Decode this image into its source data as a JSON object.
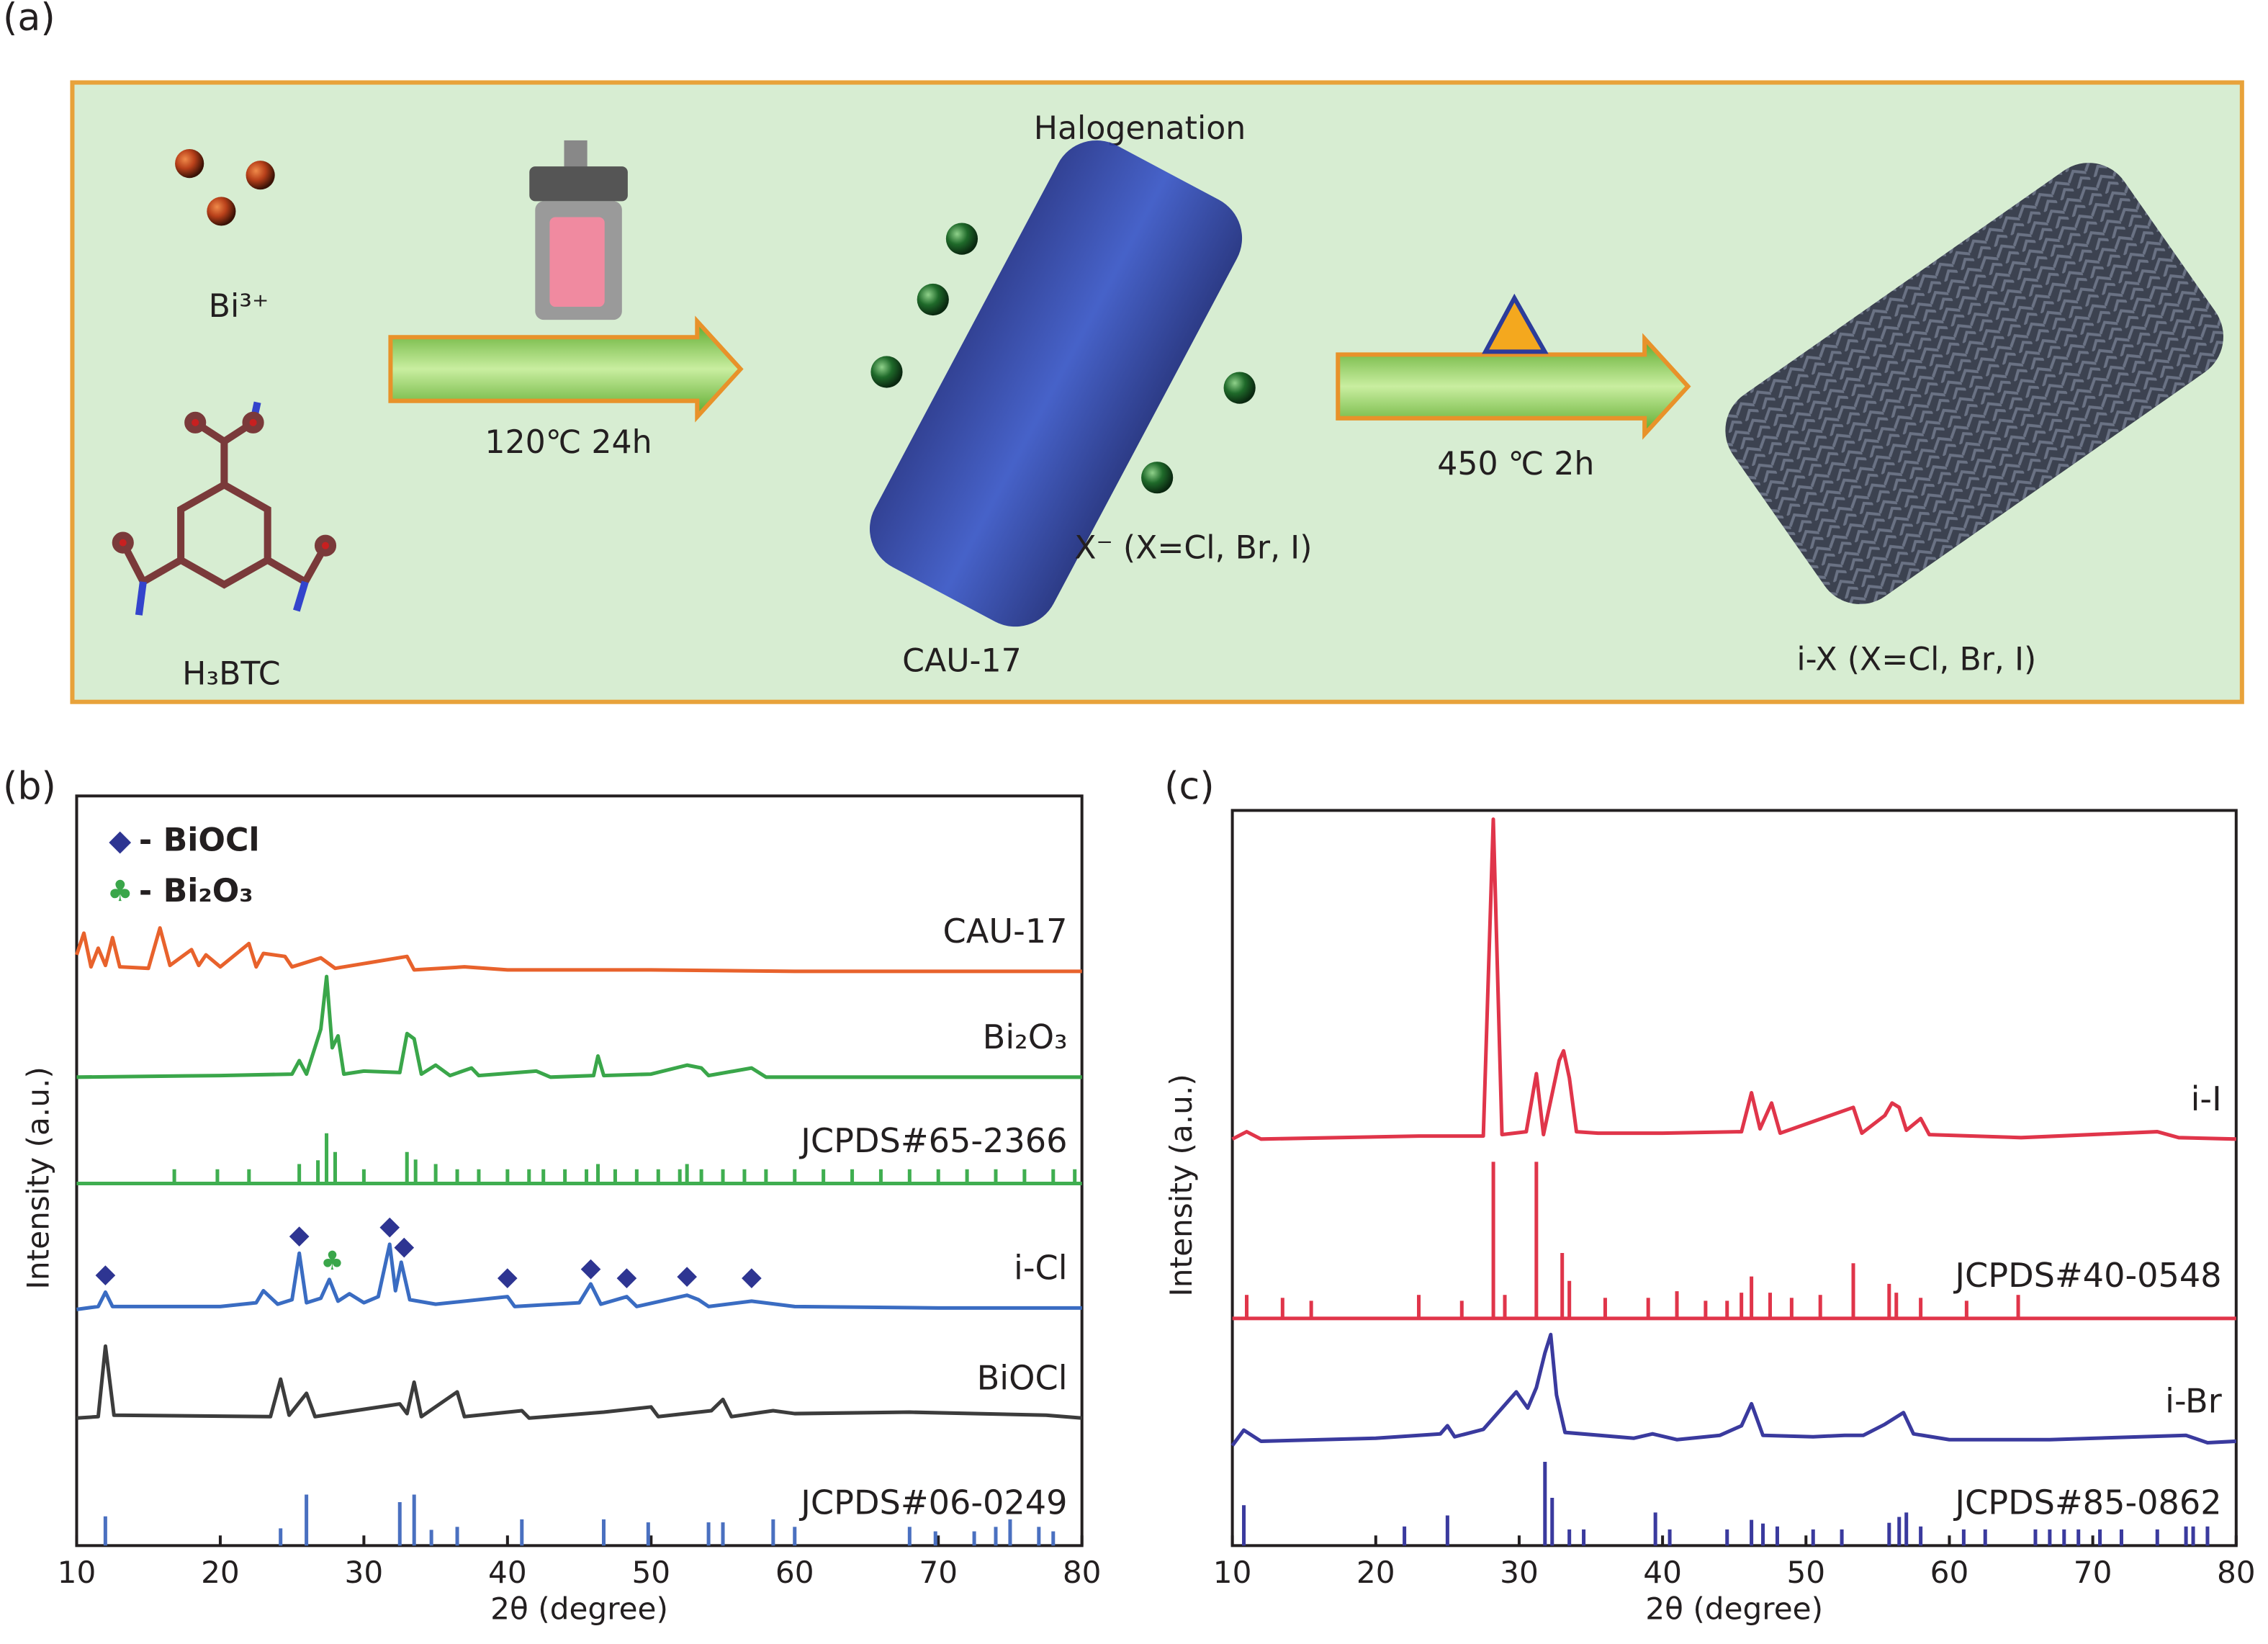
{
  "panel_a": {
    "label": "(a)",
    "halogenation": "Halogenation",
    "bi_ion": "Bi³⁺",
    "linker": "H₃BTC",
    "step1": "120℃ 24h",
    "cau": "CAU-17",
    "halide": "X⁻ (X=Cl, Br, I)",
    "step2": "450 ℃ 2h",
    "product": "i-X (X=Cl, Br, I)"
  },
  "chart_data": [
    {
      "type": "line",
      "panel_label": "(b)",
      "xlabel": "2θ (degree)",
      "ylabel": "Intensity (a.u.)",
      "xlim": [
        10,
        80
      ],
      "xticks": [
        10,
        20,
        30,
        40,
        50,
        60,
        70,
        80
      ],
      "ylim": [
        0,
        100
      ],
      "legend": [
        {
          "name": "- BiOCl",
          "symbol": "◆",
          "color": "#2e3592"
        },
        {
          "name": "- Bi₂O₃",
          "symbol": "♣",
          "color": "#3aa64a"
        }
      ],
      "phase_markers": [
        {
          "symbol": "◆",
          "color": "#2e3592",
          "x": [
            12,
            25.5,
            31.8,
            32.8,
            40,
            45.8,
            48.3,
            52.5,
            57
          ],
          "y": [
            36.1,
            41.3,
            42.5,
            39.8,
            35.7,
            36.9,
            35.7,
            35.9,
            35.7
          ]
        },
        {
          "symbol": "♣",
          "color": "#3aa64a",
          "x": [
            27.8
          ],
          "y": [
            37.8
          ]
        }
      ],
      "series": [
        {
          "name": "CAU-17",
          "style": "line",
          "color": "#e8622c",
          "x": [
            10,
            10.5,
            11,
            11.5,
            12,
            12.5,
            13,
            15,
            15.8,
            16.5,
            18,
            18.5,
            19,
            20,
            22,
            22.5,
            23,
            24.5,
            25,
            27,
            28,
            33,
            33.5,
            37,
            40,
            50,
            60,
            70,
            80
          ],
          "values": [
            78.8,
            81.7,
            77.2,
            79.7,
            77.4,
            81.1,
            77.2,
            77.0,
            82.4,
            77.4,
            79.5,
            77.4,
            78.8,
            77.2,
            80.3,
            77.2,
            79.0,
            78.6,
            77.2,
            78.4,
            77.0,
            78.6,
            76.8,
            77.2,
            76.8,
            76.8,
            76.6,
            76.6,
            76.6
          ]
        },
        {
          "name": "Bi₂O₃",
          "style": "line",
          "color": "#3aa64a",
          "x": [
            10,
            20,
            25,
            25.5,
            26,
            27,
            27.4,
            27.8,
            28.2,
            28.6,
            30,
            32.5,
            33,
            33.5,
            34,
            35,
            36,
            37.5,
            38,
            42,
            43,
            46,
            46.3,
            46.7,
            50,
            52.5,
            53.5,
            54,
            57,
            58,
            70,
            80
          ],
          "values": [
            62.5,
            62.7,
            62.9,
            64.7,
            62.9,
            68.9,
            75.9,
            66.4,
            68.0,
            62.9,
            63.3,
            63.1,
            68.3,
            67.6,
            62.9,
            64.1,
            62.7,
            63.7,
            62.7,
            63.3,
            62.5,
            62.7,
            65.3,
            62.7,
            62.9,
            64.1,
            63.7,
            62.7,
            63.7,
            62.5,
            62.5,
            62.5
          ]
        },
        {
          "name": "JCPDS#65-2366",
          "style": "stick",
          "color": "#3fae50",
          "base": 48.3,
          "x": [
            16.8,
            19.8,
            22,
            25.5,
            26.8,
            27.4,
            28,
            30,
            33,
            33.6,
            35,
            36.5,
            38,
            40,
            41.5,
            42.5,
            44,
            45.5,
            46.3,
            47.5,
            49,
            50.5,
            52,
            52.5,
            53.5,
            55,
            56.5,
            58,
            60,
            62,
            64,
            66,
            68,
            70,
            72,
            74,
            76,
            78,
            79.5
          ],
          "values": [
            50.2,
            50.2,
            50.2,
            50.9,
            51.4,
            55.0,
            52.5,
            50.2,
            52.5,
            51.5,
            50.9,
            50.2,
            50.2,
            50.2,
            50.2,
            50.2,
            50.2,
            50.2,
            50.9,
            50.2,
            50.2,
            50.2,
            50.2,
            50.9,
            50.2,
            50.2,
            50.2,
            50.2,
            50.2,
            50.2,
            50.2,
            50.2,
            50.2,
            50.2,
            50.2,
            50.2,
            50.2,
            50.2,
            50.2
          ]
        },
        {
          "name": "i-Cl",
          "style": "line",
          "color": "#3a6cc2",
          "x": [
            10,
            11.5,
            12,
            12.5,
            20,
            22.5,
            23,
            24,
            25,
            25.5,
            26,
            27,
            27.6,
            28.2,
            29,
            30,
            31,
            31.8,
            32.2,
            32.6,
            33.2,
            35,
            40,
            40.5,
            45,
            45.8,
            46.5,
            48.3,
            49,
            52.5,
            53.3,
            54,
            57,
            60,
            70,
            80
          ],
          "values": [
            31.5,
            31.9,
            33.8,
            31.9,
            31.9,
            32.4,
            34.0,
            32.2,
            32.8,
            39.0,
            32.4,
            33.0,
            35.5,
            32.6,
            33.6,
            32.4,
            33.2,
            40.2,
            34.0,
            37.8,
            32.8,
            32.2,
            33.2,
            31.9,
            32.4,
            34.9,
            32.2,
            33.2,
            31.9,
            33.4,
            32.8,
            31.9,
            32.6,
            31.9,
            31.7,
            31.7
          ]
        },
        {
          "name": "BiOCl",
          "style": "line",
          "color": "#3c3c3c",
          "x": [
            10,
            11.5,
            12,
            12.6,
            23.5,
            24.2,
            24.8,
            26,
            26.6,
            32.5,
            33,
            33.5,
            34,
            36.5,
            37,
            41,
            41.5,
            46.7,
            50,
            50.5,
            54.2,
            55,
            55.6,
            58.5,
            60,
            68,
            77.5,
            80
          ],
          "values": [
            17.0,
            17.2,
            26.6,
            17.4,
            17.2,
            22.2,
            17.4,
            20.3,
            17.2,
            18.9,
            17.6,
            21.8,
            17.2,
            20.5,
            17.2,
            18.0,
            17.0,
            17.8,
            18.5,
            17.2,
            18.0,
            19.5,
            17.2,
            18.0,
            17.6,
            17.8,
            17.4,
            17.0
          ]
        },
        {
          "name": "JCPDS#06-0249",
          "style": "stick",
          "color": "#4a70c0",
          "base": 0,
          "x": [
            12,
            24.2,
            26,
            32.5,
            33.5,
            34.7,
            36.5,
            41,
            46.7,
            49.8,
            54,
            55,
            58.5,
            60,
            68,
            69.8,
            72.5,
            74,
            75,
            77,
            78
          ],
          "values": [
            3.9,
            2.3,
            6.8,
            5.8,
            6.8,
            2.1,
            2.5,
            3.5,
            3.5,
            3.1,
            3.1,
            3.1,
            3.5,
            2.5,
            2.5,
            1.9,
            1.9,
            2.5,
            3.5,
            2.5,
            1.9
          ]
        }
      ]
    },
    {
      "type": "line",
      "panel_label": "(c)",
      "xlabel": "2θ (degree)",
      "ylabel": "Intensity (a.u.)",
      "xlim": [
        10,
        80
      ],
      "xticks": [
        10,
        20,
        30,
        40,
        50,
        60,
        70,
        80
      ],
      "ylim": [
        0,
        100
      ],
      "series": [
        {
          "name": "i-I",
          "style": "line",
          "color": "#e0354a",
          "x": [
            10,
            11,
            12,
            23,
            27.5,
            28.2,
            28.8,
            30.5,
            31.2,
            31.7,
            32.8,
            33.1,
            33.5,
            34,
            35.5,
            40,
            45.5,
            46.2,
            46.8,
            47.6,
            48.2,
            53.3,
            53.9,
            55.5,
            56,
            56.5,
            57,
            58,
            58.6,
            65,
            74.5,
            76,
            80
          ],
          "values": [
            55.3,
            56.3,
            55.3,
            55.7,
            55.7,
            98.8,
            55.9,
            56.3,
            64.2,
            55.9,
            66.0,
            67.3,
            63.6,
            56.3,
            56.1,
            56.1,
            56.3,
            61.6,
            56.7,
            60.2,
            56.1,
            59.6,
            56.1,
            58.5,
            60.2,
            59.6,
            56.5,
            58.1,
            55.9,
            55.5,
            56.3,
            55.5,
            55.3
          ]
        },
        {
          "name": "JCPDS#40-0548",
          "style": "stick",
          "color": "#e0354a",
          "base": 30.9,
          "x": [
            11,
            13.5,
            15.5,
            23,
            26,
            28.2,
            29,
            31.2,
            33,
            33.5,
            36,
            39,
            41,
            43,
            44.5,
            45.5,
            46.2,
            47.5,
            49,
            51,
            53.3,
            55.8,
            56.3,
            58,
            61.2,
            64.8
          ],
          "values": [
            34.1,
            33.7,
            33.3,
            34.1,
            33.3,
            52.2,
            34.1,
            52.2,
            39.8,
            36.0,
            33.7,
            33.7,
            34.6,
            33.3,
            33.3,
            34.4,
            36.6,
            34.4,
            33.7,
            34.1,
            38.4,
            35.6,
            34.4,
            33.7,
            33.3,
            34.1
          ]
        },
        {
          "name": "i-Br",
          "style": "line",
          "color": "#3a3a9e",
          "x": [
            10,
            10.8,
            12,
            20,
            24.5,
            25,
            25.5,
            27.5,
            29.8,
            30.6,
            31.2,
            31.8,
            32.2,
            32.6,
            33.2,
            38,
            39.3,
            41,
            44,
            45.5,
            46.2,
            47,
            50.5,
            52.7,
            54,
            55.5,
            56.8,
            57.5,
            60,
            67,
            76.5,
            78,
            80
          ],
          "values": [
            13.6,
            15.7,
            14.2,
            14.6,
            15.2,
            16.3,
            14.8,
            15.8,
            20.9,
            18.7,
            21.5,
            26.2,
            28.7,
            20.5,
            15.4,
            14.6,
            15.2,
            14.4,
            15.0,
            16.3,
            19.3,
            15.0,
            14.8,
            15.0,
            15.0,
            16.5,
            18.1,
            15.2,
            14.4,
            14.4,
            15.0,
            14.0,
            14.2
          ]
        },
        {
          "name": "JCPDS#85-0862",
          "style": "stick",
          "color": "#3a3a9e",
          "base": 0,
          "x": [
            10.8,
            22,
            25,
            31.8,
            32.3,
            33.5,
            34.5,
            39.5,
            40.5,
            44.5,
            46.2,
            47,
            48,
            50.5,
            52.5,
            55.8,
            56.5,
            57,
            58,
            61,
            62.5,
            66,
            67,
            68,
            69,
            70.5,
            72,
            74.5,
            76.5,
            77,
            78
          ],
          "values": [
            5.5,
            2.6,
            4.1,
            11.4,
            6.5,
            2.2,
            2.2,
            4.5,
            2.2,
            2.2,
            3.5,
            3.0,
            2.6,
            2.2,
            2.2,
            3.1,
            3.9,
            4.5,
            2.6,
            2.2,
            2.2,
            2.2,
            2.2,
            2.2,
            2.2,
            2.2,
            2.2,
            2.2,
            2.6,
            2.6,
            2.6
          ]
        }
      ]
    }
  ]
}
